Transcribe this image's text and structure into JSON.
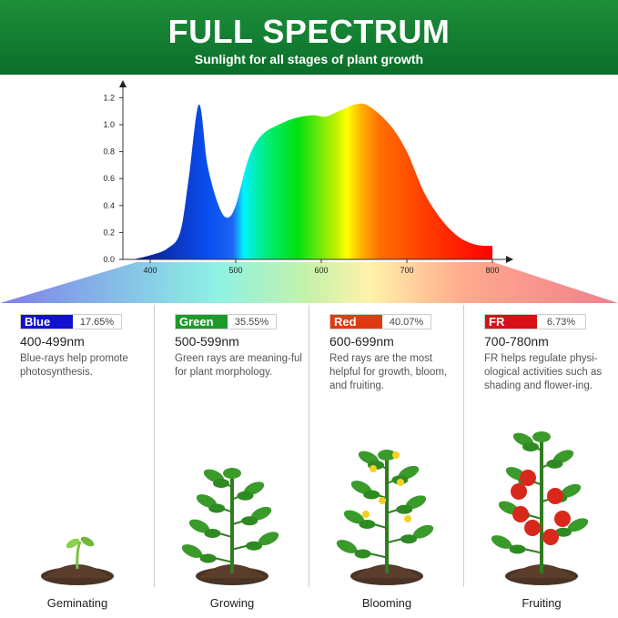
{
  "header": {
    "title": "FULL SPECTRUM",
    "subtitle": "Sunlight for all stages of plant growth"
  },
  "chart_data": {
    "type": "area",
    "title": "",
    "xlabel": "",
    "ylabel": "",
    "xlim": [
      370,
      800
    ],
    "ylim": [
      0,
      1.25
    ],
    "x_ticks": [
      "400",
      "500",
      "600",
      "700",
      "800"
    ],
    "y_ticks": [
      "0.0",
      "0.2",
      "0.4",
      "0.6",
      "0.8",
      "1.0",
      "1.2"
    ],
    "grid": false,
    "x": [
      380,
      400,
      420,
      435,
      445,
      457,
      467,
      480,
      490,
      500,
      515,
      530,
      550,
      570,
      590,
      605,
      620,
      640,
      655,
      680,
      700,
      720,
      740,
      760,
      780,
      800
    ],
    "y": [
      0,
      0.03,
      0.08,
      0.2,
      0.6,
      1.15,
      0.7,
      0.4,
      0.31,
      0.4,
      0.75,
      0.92,
      1.0,
      1.05,
      1.07,
      1.06,
      1.1,
      1.15,
      1.14,
      1.0,
      0.8,
      0.5,
      0.3,
      0.17,
      0.11,
      0.1
    ]
  },
  "bands": [
    {
      "name": "Blue",
      "percent": "17.65%",
      "color": "#1010d0",
      "range": "400-499nm",
      "desc": "Blue-rays help promote photosynthesis.",
      "stage": "Geminating"
    },
    {
      "name": "Green",
      "percent": "35.55%",
      "color": "#1c9a2c",
      "range": "500-599nm",
      "desc": "Green rays are meaning-ful for plant morphology.",
      "stage": "Growing"
    },
    {
      "name": "Red",
      "percent": "40.07%",
      "color": "#e03a10",
      "range": "600-699nm",
      "desc": "Red rays are the most helpful for growth, bloom, and fruiting.",
      "stage": "Blooming"
    },
    {
      "name": "FR",
      "percent": "6.73%",
      "color": "#d80f16",
      "range": "700-780nm",
      "desc": "FR helps regulate physi-ological activities such as shading and flower-ing.",
      "stage": "Fruiting"
    }
  ]
}
